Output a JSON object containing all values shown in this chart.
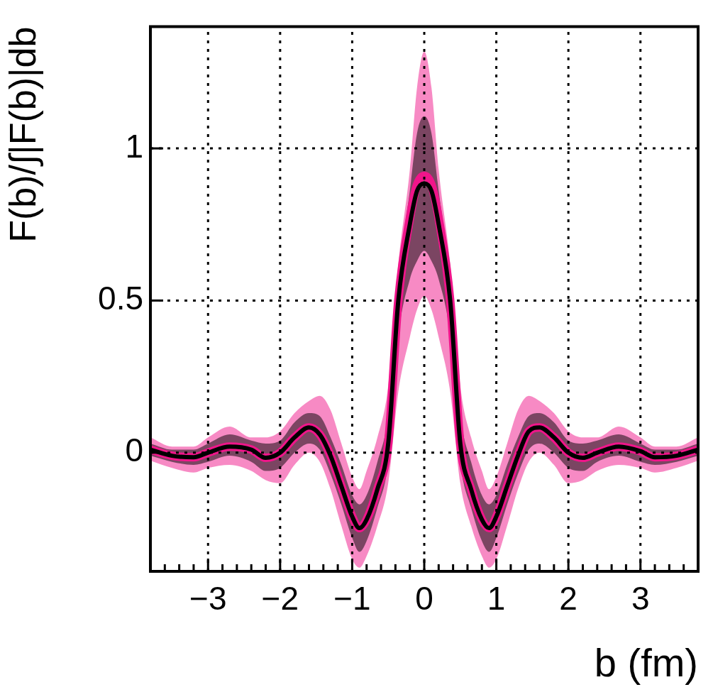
{
  "chart_data": {
    "type": "line",
    "xlabel": "b (fm)",
    "ylabel": "F(b)/∫|F(b)|db",
    "x": [
      -3.8,
      -3.5,
      -3.2,
      -3.0,
      -2.7,
      -2.4,
      -2.2,
      -2.0,
      -1.8,
      -1.6,
      -1.45,
      -1.3,
      -1.15,
      -1.0,
      -0.9,
      -0.8,
      -0.65,
      -0.5,
      -0.36,
      -0.2,
      -0.1,
      0,
      0.1,
      0.2,
      0.36,
      0.5,
      0.65,
      0.8,
      0.9,
      1.0,
      1.15,
      1.3,
      1.45,
      1.6,
      1.8,
      2.0,
      2.2,
      2.4,
      2.7,
      3.0,
      3.2,
      3.5,
      3.8
    ],
    "series": [
      {
        "color": "#f0158a",
        "values": [
          0.01,
          -0.01,
          -0.015,
          0.0,
          0.02,
          0.01,
          -0.017,
          0.0,
          0.05,
          0.083,
          0.06,
          -0.01,
          -0.11,
          -0.21,
          -0.248,
          -0.22,
          -0.12,
          0.03,
          0.5,
          0.77,
          0.88,
          0.91,
          0.88,
          0.77,
          0.5,
          0.03,
          -0.12,
          -0.22,
          -0.248,
          -0.21,
          -0.11,
          -0.01,
          0.07,
          0.083,
          0.05,
          0.0,
          -0.017,
          0.0,
          0.02,
          0.005,
          -0.015,
          -0.01,
          0.01
        ],
        "lower": [
          -0.026,
          -0.05,
          -0.065,
          -0.05,
          -0.04,
          -0.06,
          -0.09,
          -0.1,
          -0.04,
          0.0,
          -0.03,
          -0.12,
          -0.24,
          -0.35,
          -0.378,
          -0.34,
          -0.24,
          -0.1,
          0.2,
          0.38,
          0.47,
          0.515,
          0.47,
          0.38,
          0.2,
          -0.1,
          -0.24,
          -0.34,
          -0.378,
          -0.35,
          -0.24,
          -0.12,
          -0.03,
          0.0,
          -0.04,
          -0.1,
          -0.09,
          -0.06,
          -0.04,
          -0.05,
          -0.065,
          -0.05,
          -0.026
        ],
        "upper": [
          0.05,
          0.02,
          0.02,
          0.05,
          0.086,
          0.05,
          0.05,
          0.07,
          0.13,
          0.17,
          0.187,
          0.14,
          0.03,
          -0.08,
          -0.12,
          -0.06,
          0.05,
          0.22,
          0.62,
          0.93,
          1.2,
          1.318,
          1.2,
          0.93,
          0.62,
          0.22,
          0.05,
          -0.06,
          -0.12,
          -0.08,
          0.03,
          0.14,
          0.187,
          0.17,
          0.13,
          0.07,
          0.05,
          0.05,
          0.086,
          0.05,
          0.02,
          0.02,
          0.05
        ]
      },
      {
        "color": "#000000",
        "values": [
          0.01,
          -0.01,
          -0.015,
          0.0,
          0.02,
          0.01,
          -0.017,
          0.0,
          0.05,
          0.083,
          0.06,
          -0.01,
          -0.11,
          -0.21,
          -0.248,
          -0.22,
          -0.12,
          0.03,
          0.5,
          0.75,
          0.86,
          0.885,
          0.86,
          0.75,
          0.5,
          0.03,
          -0.12,
          -0.22,
          -0.248,
          -0.21,
          -0.11,
          -0.01,
          0.07,
          0.083,
          0.05,
          0.0,
          -0.017,
          0.0,
          0.02,
          0.005,
          -0.015,
          -0.01,
          0.01
        ],
        "lower": [
          -0.01,
          -0.03,
          -0.04,
          -0.03,
          -0.01,
          -0.03,
          -0.06,
          -0.05,
          0.0,
          0.03,
          0.01,
          -0.07,
          -0.17,
          -0.28,
          -0.326,
          -0.29,
          -0.18,
          -0.03,
          0.38,
          0.57,
          0.63,
          0.663,
          0.63,
          0.57,
          0.38,
          -0.03,
          -0.18,
          -0.29,
          -0.326,
          -0.28,
          -0.17,
          -0.07,
          0.01,
          0.03,
          0.0,
          -0.05,
          -0.06,
          -0.03,
          -0.01,
          -0.03,
          -0.04,
          -0.03,
          -0.01
        ],
        "upper": [
          0.03,
          0.01,
          0.01,
          0.03,
          0.06,
          0.04,
          0.03,
          0.04,
          0.1,
          0.13,
          0.12,
          0.05,
          -0.04,
          -0.14,
          -0.17,
          -0.14,
          -0.03,
          0.13,
          0.57,
          0.86,
          1.05,
          1.106,
          1.05,
          0.86,
          0.57,
          0.13,
          -0.03,
          -0.14,
          -0.17,
          -0.14,
          -0.04,
          0.05,
          0.12,
          0.13,
          0.1,
          0.04,
          0.03,
          0.04,
          0.06,
          0.03,
          0.01,
          0.01,
          0.03
        ]
      }
    ],
    "xlim": [
      -3.8,
      3.8
    ],
    "xticks": [
      {
        "value": -3.8,
        "label": null
      },
      {
        "value": -3.6,
        "label": null
      },
      {
        "value": -3.4,
        "label": null
      },
      {
        "value": -3.2,
        "label": null
      },
      {
        "value": -3,
        "label": "−3"
      },
      {
        "value": -2.8,
        "label": null
      },
      {
        "value": -2.6,
        "label": null
      },
      {
        "value": -2.4,
        "label": null
      },
      {
        "value": -2.2,
        "label": null
      },
      {
        "value": -2,
        "label": "−2"
      },
      {
        "value": -1.8,
        "label": null
      },
      {
        "value": -1.6,
        "label": null
      },
      {
        "value": -1.4,
        "label": null
      },
      {
        "value": -1.2,
        "label": null
      },
      {
        "value": -1,
        "label": "−1"
      },
      {
        "value": -0.8,
        "label": null
      },
      {
        "value": -0.6,
        "label": null
      },
      {
        "value": -0.4,
        "label": null
      },
      {
        "value": -0.2,
        "label": null
      },
      0,
      {
        "value": 0.2,
        "label": null
      },
      {
        "value": 0.4,
        "label": null
      },
      {
        "value": 0.6,
        "label": null
      },
      {
        "value": 0.8,
        "label": null
      },
      1,
      {
        "value": 1.2,
        "label": null
      },
      {
        "value": 1.4,
        "label": null
      },
      {
        "value": 1.6,
        "label": null
      },
      {
        "value": 1.8,
        "label": null
      },
      2,
      {
        "value": 2.2,
        "label": null
      },
      {
        "value": 2.4,
        "label": null
      },
      {
        "value": 2.6,
        "label": null
      },
      {
        "value": 2.8,
        "label": null
      },
      3,
      {
        "value": 3.2,
        "label": null
      },
      {
        "value": 3.4,
        "label": null
      },
      {
        "value": 3.6,
        "label": null
      }
    ],
    "ylim": [
      -0.39,
      1.4
    ],
    "yticks": [
      0,
      0.5,
      1
    ],
    "grid": true,
    "legend": false,
    "marker": "none",
    "line_style": "solid"
  }
}
